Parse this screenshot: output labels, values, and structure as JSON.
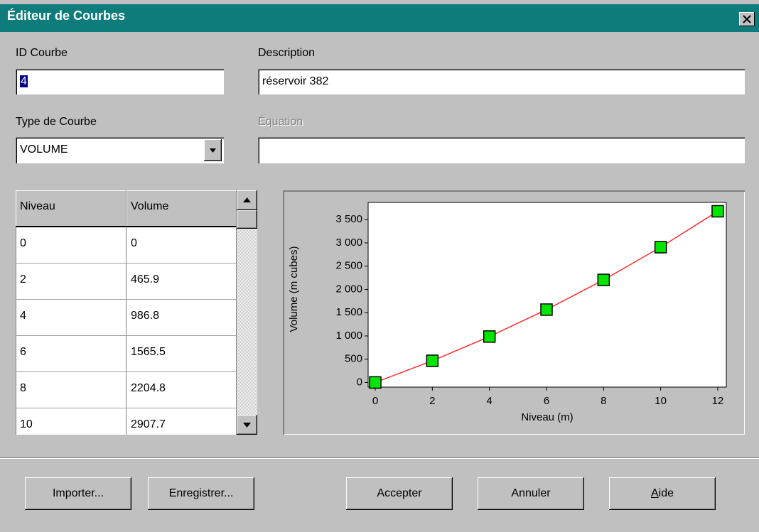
{
  "window": {
    "title": "Éditeur de Courbes"
  },
  "form": {
    "id_label": "ID Courbe",
    "id_value": "4",
    "description_label": "Description",
    "description_value": "réservoir 382",
    "type_label": "Type de Courbe",
    "type_value": "VOLUME",
    "equation_label": "Équation"
  },
  "table": {
    "columns": [
      "Niveau",
      "Volume"
    ],
    "rows": [
      [
        "0",
        "0"
      ],
      [
        "2",
        "465.9"
      ],
      [
        "4",
        "986.8"
      ],
      [
        "6",
        "1565.5"
      ],
      [
        "8",
        "2204.8"
      ],
      [
        "10",
        "2907.7"
      ]
    ]
  },
  "chart_data": {
    "type": "line",
    "x": [
      0,
      2,
      4,
      6,
      8,
      10,
      12
    ],
    "values": [
      0,
      465.9,
      986.8,
      1565.5,
      2204.8,
      2907.7,
      3680
    ],
    "color": "#ff3030",
    "marker_color": "#00e600",
    "xlabel": "Niveau (m)",
    "ylabel": "Volume (m cubes)",
    "xlim": [
      -0.25,
      12.3
    ],
    "ylim": [
      -100,
      3870
    ],
    "xticks": [
      0,
      2,
      4,
      6,
      8,
      10,
      12
    ],
    "yticks": [
      0,
      500,
      {
        "value": 1000,
        "label": "1 000"
      },
      {
        "value": 1500,
        "label": "1 500"
      },
      {
        "value": 2000,
        "label": "2 000"
      },
      {
        "value": 2500,
        "label": "2 500"
      },
      {
        "value": 3000,
        "label": "3 000"
      },
      {
        "value": 3500,
        "label": "3 500"
      }
    ]
  },
  "buttons": [
    "Importer...",
    "Enregistrer...",
    "Accepter",
    "Annuler",
    "Aide"
  ]
}
